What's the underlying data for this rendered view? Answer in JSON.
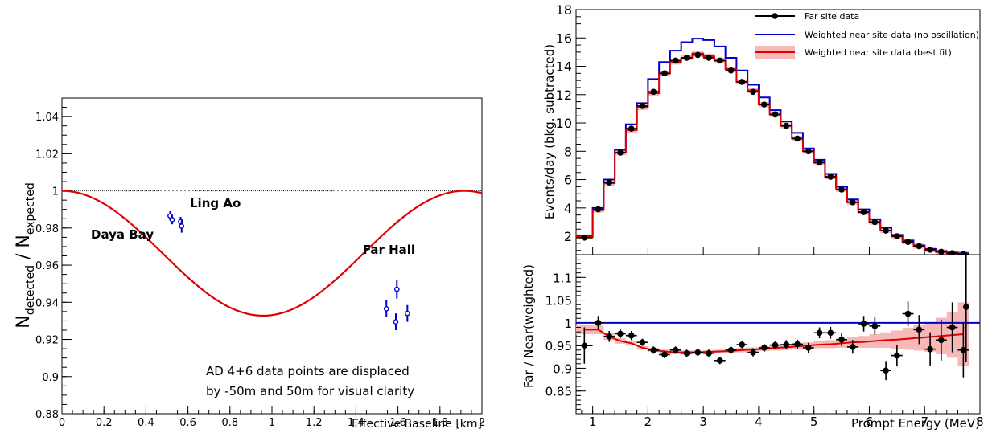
{
  "chart_data": [
    {
      "type": "scatter",
      "xlabel": "Effective Baseline [km]",
      "ylabel_main": "N",
      "ylabel_sub1": "detected",
      "ylabel_sep": " / N",
      "ylabel_sub2": "expected",
      "xlim": [
        0,
        2
      ],
      "ylim": [
        0.88,
        1.05
      ],
      "xticks": [
        "0",
        "0.2",
        "0.4",
        "0.6",
        "0.8",
        "1",
        "1.2",
        "1.4",
        "1.6",
        "1.8",
        "2"
      ],
      "yticks": [
        "0.88",
        "0.9",
        "0.92",
        "0.94",
        "0.96",
        "0.98",
        "1",
        "1.02",
        "1.04"
      ],
      "labels": {
        "daya_bay": "Daya Bay",
        "ling_ao": "Ling Ao",
        "far_hall": "Far Hall"
      },
      "note_line1": "AD 4+6 data points are displaced",
      "note_line2": "by -50m and 50m for visual clarity",
      "reference_line": 1.0,
      "fit_curve": {
        "amplitude": 0.0672,
        "period_factor": 1.64
      },
      "points": [
        {
          "x": 0.515,
          "y": 0.9865,
          "err": 0.0025
        },
        {
          "x": 0.525,
          "y": 0.9845,
          "err": 0.0025
        },
        {
          "x": 0.565,
          "y": 0.9835,
          "err": 0.0025
        },
        {
          "x": 0.57,
          "y": 0.981,
          "err": 0.0035
        },
        {
          "x": 1.545,
          "y": 0.9365,
          "err": 0.0045
        },
        {
          "x": 1.59,
          "y": 0.9295,
          "err": 0.0045
        },
        {
          "x": 1.595,
          "y": 0.947,
          "err": 0.005
        },
        {
          "x": 1.645,
          "y": 0.934,
          "err": 0.0045
        }
      ],
      "colors": {
        "points": "#0000cc",
        "fit": "#e00000",
        "reference": "#000000"
      }
    },
    {
      "type": "bar",
      "ylabel": "Events/day (bkg. subtracted)",
      "xlim": [
        0.7,
        8
      ],
      "ylim": [
        0.7,
        18
      ],
      "yticks": [
        "2",
        "4",
        "6",
        "8",
        "10",
        "12",
        "14",
        "16",
        "18"
      ],
      "legend": {
        "placement": "top-right",
        "far": "Far site data",
        "no_osc": "Weighted near site data (no oscillation)",
        "best_fit": "Weighted near site data (best fit)"
      },
      "bin_edges": [
        0.7,
        1.0,
        1.2,
        1.4,
        1.6,
        1.8,
        2.0,
        2.2,
        2.4,
        2.6,
        2.8,
        3.0,
        3.2,
        3.4,
        3.6,
        3.8,
        4.0,
        4.2,
        4.4,
        4.6,
        4.8,
        5.0,
        5.2,
        5.4,
        5.6,
        5.8,
        6.0,
        6.2,
        6.4,
        6.6,
        6.8,
        7.0,
        7.2,
        7.4,
        7.6,
        7.8,
        8.0
      ],
      "series": [
        {
          "name": "Weighted near site data (no oscillation)",
          "values": [
            2.0,
            4.0,
            6.0,
            8.1,
            9.9,
            11.4,
            13.1,
            14.3,
            15.1,
            15.7,
            15.95,
            15.85,
            15.4,
            14.6,
            13.7,
            12.7,
            11.8,
            10.9,
            10.1,
            9.3,
            8.2,
            7.4,
            6.4,
            5.5,
            4.6,
            3.9,
            3.2,
            2.6,
            2.1,
            1.7,
            1.35,
            1.1,
            0.95,
            0.85,
            0.8
          ]
        },
        {
          "name": "Weighted near site data (best fit)",
          "values": [
            1.95,
            3.85,
            5.75,
            7.9,
            9.5,
            11.1,
            12.1,
            13.5,
            14.3,
            14.6,
            14.9,
            14.7,
            14.4,
            13.8,
            12.9,
            12.3,
            11.3,
            10.6,
            9.8,
            8.9,
            8.0,
            7.2,
            6.2,
            5.3,
            4.4,
            3.7,
            3.0,
            2.4,
            2.0,
            1.6,
            1.3,
            1.05,
            0.9,
            0.8,
            0.75
          ]
        },
        {
          "name": "Far site data",
          "values": [
            1.9,
            3.9,
            5.8,
            7.9,
            9.6,
            11.2,
            12.2,
            13.5,
            14.4,
            14.6,
            14.8,
            14.6,
            14.4,
            13.7,
            12.9,
            12.2,
            11.3,
            10.6,
            9.8,
            8.9,
            8.0,
            7.2,
            6.2,
            5.3,
            4.4,
            3.7,
            3.0,
            2.4,
            2.0,
            1.6,
            1.3,
            1.05,
            0.9,
            0.8,
            0.75
          ]
        }
      ],
      "colors": {
        "far": "#000000",
        "no_osc": "#0000cc",
        "best_fit": "#e00000",
        "band": "#f7b8b8"
      }
    },
    {
      "type": "scatter",
      "xlabel": "Prompt Energy (MeV)",
      "ylabel": "Far / Near(weighted)",
      "xlim": [
        0.7,
        8
      ],
      "ylim": [
        0.8,
        1.15
      ],
      "xticks": [
        "1",
        "2",
        "3",
        "4",
        "5",
        "6",
        "7",
        "8"
      ],
      "yticks": [
        "0.85",
        "0.9",
        "0.95",
        "1",
        "1.05",
        "1.1"
      ],
      "reference_line": 1.0,
      "ratio": [
        0.95,
        1.0,
        0.97,
        0.976,
        0.972,
        0.957,
        0.94,
        0.93,
        0.94,
        0.933,
        0.935,
        0.933,
        0.917,
        0.94,
        0.952,
        0.935,
        0.945,
        0.951,
        0.952,
        0.953,
        0.945,
        0.978,
        0.978,
        0.963,
        0.947,
        0.998,
        0.993,
        0.895,
        0.928,
        1.02,
        0.985,
        0.942,
        0.962,
        0.99,
        0.94
      ],
      "ratio_err": [
        0.04,
        0.015,
        0.012,
        0.01,
        0.01,
        0.008,
        0.008,
        0.008,
        0.008,
        0.008,
        0.008,
        0.008,
        0.008,
        0.008,
        0.008,
        0.009,
        0.009,
        0.009,
        0.01,
        0.01,
        0.011,
        0.012,
        0.013,
        0.014,
        0.015,
        0.017,
        0.019,
        0.021,
        0.024,
        0.027,
        0.032,
        0.037,
        0.045,
        0.055,
        0.06
      ],
      "extra_point": {
        "x": 7.75,
        "y": 1.035,
        "err": 0.12
      },
      "fit_ratio": [
        0.985,
        0.985,
        0.97,
        0.96,
        0.955,
        0.945,
        0.94,
        0.937,
        0.935,
        0.935,
        0.935,
        0.936,
        0.937,
        0.938,
        0.94,
        0.941,
        0.943,
        0.945,
        0.946,
        0.948,
        0.95,
        0.952,
        0.953,
        0.955,
        0.957,
        0.958,
        0.96,
        0.962,
        0.963,
        0.965,
        0.967,
        0.969,
        0.971,
        0.973,
        0.975
      ],
      "fit_band_err": [
        0.01,
        0.01,
        0.008,
        0.006,
        0.005,
        0.004,
        0.004,
        0.004,
        0.004,
        0.004,
        0.004,
        0.004,
        0.004,
        0.004,
        0.005,
        0.005,
        0.005,
        0.006,
        0.006,
        0.007,
        0.007,
        0.008,
        0.009,
        0.01,
        0.012,
        0.013,
        0.015,
        0.017,
        0.02,
        0.024,
        0.028,
        0.033,
        0.04,
        0.05,
        0.07
      ],
      "colors": {
        "points": "#000000",
        "fit": "#e00000",
        "reference": "#0000cc",
        "band": "#f7b8b8"
      }
    }
  ]
}
